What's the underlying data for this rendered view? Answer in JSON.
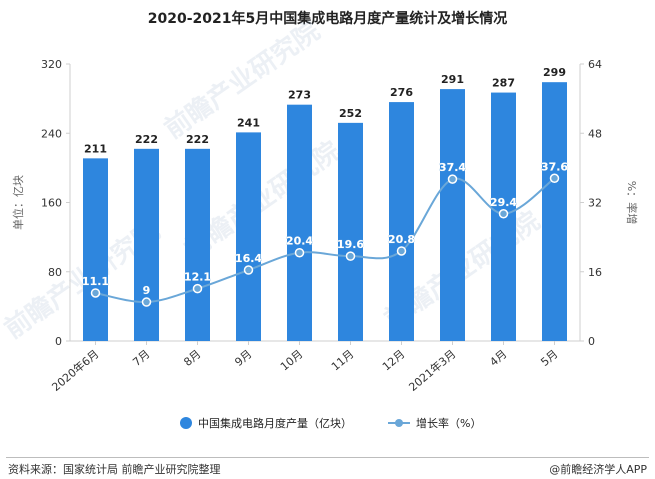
{
  "title": "2020-2021年5月中国集成电路月度产量统计及增长情况",
  "source": "资料来源：国家统计局 前瞻产业研究院整理",
  "brand": "@前瞻经济学人APP",
  "watermark": "前瞻产业研究院",
  "colors": {
    "bar": "#2e86de",
    "line": "#6aa7d8",
    "axis": "#cfcfcf",
    "text": "#333333"
  },
  "chart_data": {
    "type": "bar",
    "categories": [
      "2020年6月",
      "7月",
      "8月",
      "9月",
      "10月",
      "11月",
      "12月",
      "2021年3月",
      "4月",
      "5月"
    ],
    "series": [
      {
        "name": "中国集成电路月度产量（亿块）",
        "type": "bar",
        "axis": "left",
        "values": [
          211,
          222,
          222,
          241,
          273,
          252,
          276,
          291,
          287,
          299
        ]
      },
      {
        "name": "增长率（%）",
        "type": "line",
        "axis": "right",
        "values": [
          11.1,
          9,
          12.1,
          16.4,
          20.4,
          19.6,
          20.8,
          37.4,
          29.4,
          37.6
        ]
      }
    ],
    "ylabel": "单位：亿块",
    "y2label": "%：率增",
    "ylim": [
      0,
      320
    ],
    "y2lim": [
      0,
      64
    ],
    "yticks": [
      0,
      80,
      160,
      240,
      320
    ],
    "y2ticks": [
      0,
      16,
      32,
      48,
      64
    ],
    "legend_position": "bottom",
    "grid": false
  }
}
